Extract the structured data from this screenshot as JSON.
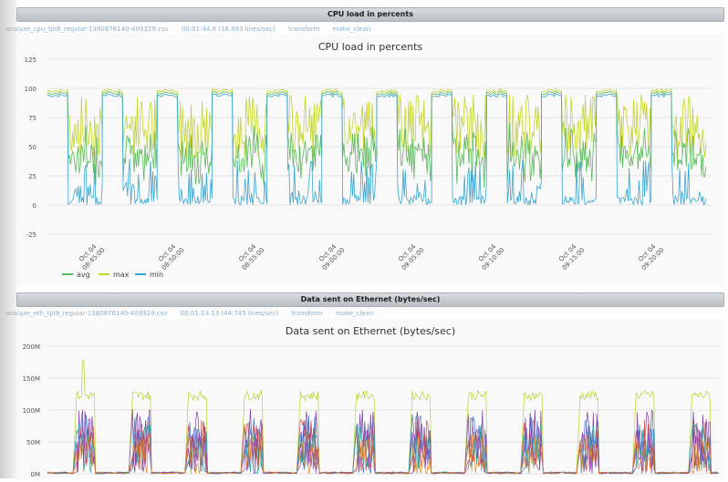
{
  "panels": [
    {
      "header_title": "CPU load in percents",
      "file_name": "analyze_cpu_tpl8_regular-1380876140-409329.csv",
      "duration": "00:01:44.8 (18.893 lines/sec)",
      "action_transform": "transform",
      "action_make_clean": "make_clean"
    },
    {
      "header_title": "Data sent on Ethernet (bytes/sec)",
      "file_name": "analyze_eth_tpl8_regular-1380876140-409329.csv",
      "duration": "00:01:13.13 (44.745 lines/sec)",
      "action_transform": "transform",
      "action_make_clean": "make_clean"
    }
  ],
  "chart_data": [
    {
      "type": "line",
      "title": "CPU load in percents",
      "xlabel": "",
      "ylabel": "",
      "ylim": [
        -25,
        125
      ],
      "y_ticks": [
        "125",
        "100",
        "75",
        "50",
        "25",
        "0",
        "-25"
      ],
      "x_tick_labels": [
        [
          "Oct 04",
          "08:45:00"
        ],
        [
          "Oct 04",
          "08:50:00"
        ],
        [
          "Oct 04",
          "08:55:00"
        ],
        [
          "Oct 04",
          "09:00:00"
        ],
        [
          "Oct 04",
          "09:05:00"
        ],
        [
          "Oct 04",
          "09:10:00"
        ],
        [
          "Oct 04",
          "09:15:00"
        ],
        [
          "Oct 04",
          "09:20:00"
        ]
      ],
      "grid": true,
      "legend_position": "bottom-left",
      "series": [
        {
          "name": "avg",
          "color": "#5cb85c"
        },
        {
          "name": "max",
          "color": "#c4d62a"
        },
        {
          "name": "min",
          "color": "#3aa6cf"
        }
      ],
      "pattern": {
        "cycles": 12,
        "idle_level": 98,
        "busy_range": [
          0,
          95
        ]
      }
    },
    {
      "type": "line",
      "title": "Data sent on Ethernet (bytes/sec)",
      "xlabel": "",
      "ylabel": "",
      "ylim": [
        0,
        200000000
      ],
      "y_ticks": [
        "200M",
        "150M",
        "100M",
        "50M",
        "0M"
      ],
      "grid": true,
      "series_colors": [
        "#b5d334",
        "#7b3fa0",
        "#3e6fd1",
        "#d24b4b",
        "#2aa7a7",
        "#8e44ad",
        "#e08a2a"
      ],
      "pattern": {
        "cycles": 12,
        "high_level": 120000000,
        "peak": 178000000
      }
    }
  ]
}
